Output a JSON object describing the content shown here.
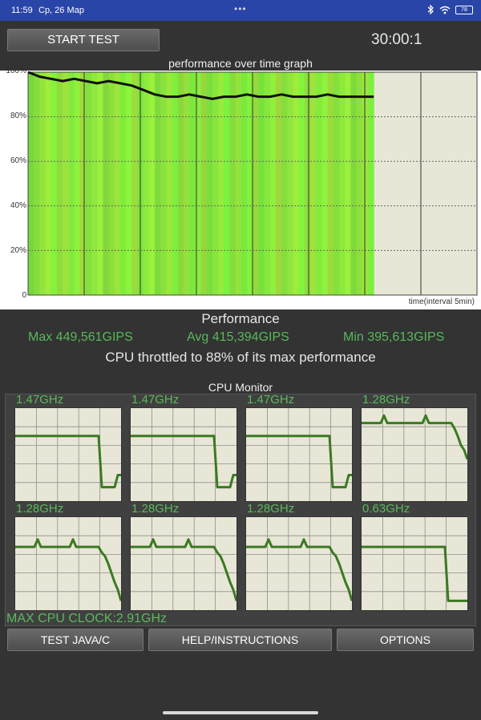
{
  "status_bar": {
    "time": "11:59",
    "date": "Ср, 26 Мар",
    "battery": "78"
  },
  "start_button": "START TEST",
  "timer": "30:00:1",
  "graph": {
    "title": "performance over time graph",
    "y_labels": [
      "100%",
      "80%",
      "60%",
      "40%",
      "20%",
      "0"
    ],
    "x_label": "time(interval 5min)"
  },
  "chart_data": {
    "type": "line",
    "title": "performance over time graph",
    "xlabel": "time(interval 5min)",
    "ylim": [
      0,
      100
    ],
    "y_ticks": [
      "100%",
      "80%",
      "60%",
      "40%",
      "20%",
      "0"
    ],
    "x_intervals": 8,
    "elapsed_fraction": 0.77,
    "series": [
      {
        "values": [
          100,
          98,
          97,
          96,
          97,
          96,
          95,
          96,
          95,
          94,
          92,
          90,
          89,
          89,
          90,
          89,
          88,
          89,
          89,
          90,
          89,
          89,
          90,
          89,
          89,
          89,
          90,
          89,
          89,
          89,
          89
        ]
      }
    ]
  },
  "performance": {
    "title": "Performance",
    "max": "Max 449,561GIPS",
    "avg": "Avg 415,394GIPS",
    "min": "Min 395,613GIPS",
    "throttle_text": "CPU throttled to 88% of its max performance"
  },
  "cpu_monitor": {
    "title": "CPU Monitor",
    "cores": [
      {
        "freq": "1.47GHz",
        "values": [
          70,
          70,
          70,
          70,
          70,
          70,
          70,
          70,
          70,
          70,
          70,
          70,
          70,
          70,
          70,
          70,
          70,
          70,
          70,
          70,
          70,
          70,
          70,
          70,
          70,
          70,
          70,
          15,
          15,
          15,
          15,
          15,
          28,
          28
        ]
      },
      {
        "freq": "1.47GHz",
        "values": [
          70,
          70,
          70,
          70,
          70,
          70,
          70,
          70,
          70,
          70,
          70,
          70,
          70,
          70,
          70,
          70,
          70,
          70,
          70,
          70,
          70,
          70,
          70,
          70,
          70,
          70,
          70,
          15,
          15,
          15,
          15,
          15,
          28,
          28
        ]
      },
      {
        "freq": "1.47GHz",
        "values": [
          70,
          70,
          70,
          70,
          70,
          70,
          70,
          70,
          70,
          70,
          70,
          70,
          70,
          70,
          70,
          70,
          70,
          70,
          70,
          70,
          70,
          70,
          70,
          70,
          70,
          70,
          70,
          15,
          15,
          15,
          15,
          15,
          28,
          28
        ]
      },
      {
        "freq": "1.28GHz",
        "values": [
          84,
          84,
          84,
          84,
          84,
          84,
          84,
          92,
          84,
          84,
          84,
          84,
          84,
          84,
          84,
          84,
          84,
          84,
          84,
          84,
          92,
          84,
          84,
          84,
          84,
          84,
          84,
          84,
          84,
          78,
          70,
          60,
          55,
          45
        ]
      },
      {
        "freq": "1.28GHz",
        "values": [
          68,
          68,
          68,
          68,
          68,
          68,
          68,
          76,
          68,
          68,
          68,
          68,
          68,
          68,
          68,
          68,
          68,
          68,
          76,
          68,
          68,
          68,
          68,
          68,
          68,
          68,
          68,
          62,
          58,
          50,
          40,
          30,
          22,
          10
        ]
      },
      {
        "freq": "1.28GHz",
        "values": [
          68,
          68,
          68,
          68,
          68,
          68,
          68,
          76,
          68,
          68,
          68,
          68,
          68,
          68,
          68,
          68,
          68,
          68,
          76,
          68,
          68,
          68,
          68,
          68,
          68,
          68,
          68,
          62,
          58,
          50,
          40,
          30,
          22,
          10
        ]
      },
      {
        "freq": "1.28GHz",
        "values": [
          68,
          68,
          68,
          68,
          68,
          68,
          68,
          76,
          68,
          68,
          68,
          68,
          68,
          68,
          68,
          68,
          68,
          68,
          76,
          68,
          68,
          68,
          68,
          68,
          68,
          68,
          68,
          62,
          58,
          50,
          40,
          30,
          22,
          10
        ]
      },
      {
        "freq": "0.63GHz",
        "values": [
          68,
          68,
          68,
          68,
          68,
          68,
          68,
          68,
          68,
          68,
          68,
          68,
          68,
          68,
          68,
          68,
          68,
          68,
          68,
          68,
          68,
          68,
          68,
          68,
          68,
          68,
          68,
          10,
          10,
          10,
          10,
          10,
          10,
          10
        ]
      }
    ],
    "max_clock": "MAX CPU CLOCK:2.91GHz"
  },
  "buttons": {
    "test": "TEST JAVA/C",
    "help": "HELP/INSTRUCTIONS",
    "options": "OPTIONS"
  },
  "colors": {
    "accent_green": "#5aba5c",
    "statusbar": "#2a45a8",
    "graph_fill": "#8ae63c"
  }
}
